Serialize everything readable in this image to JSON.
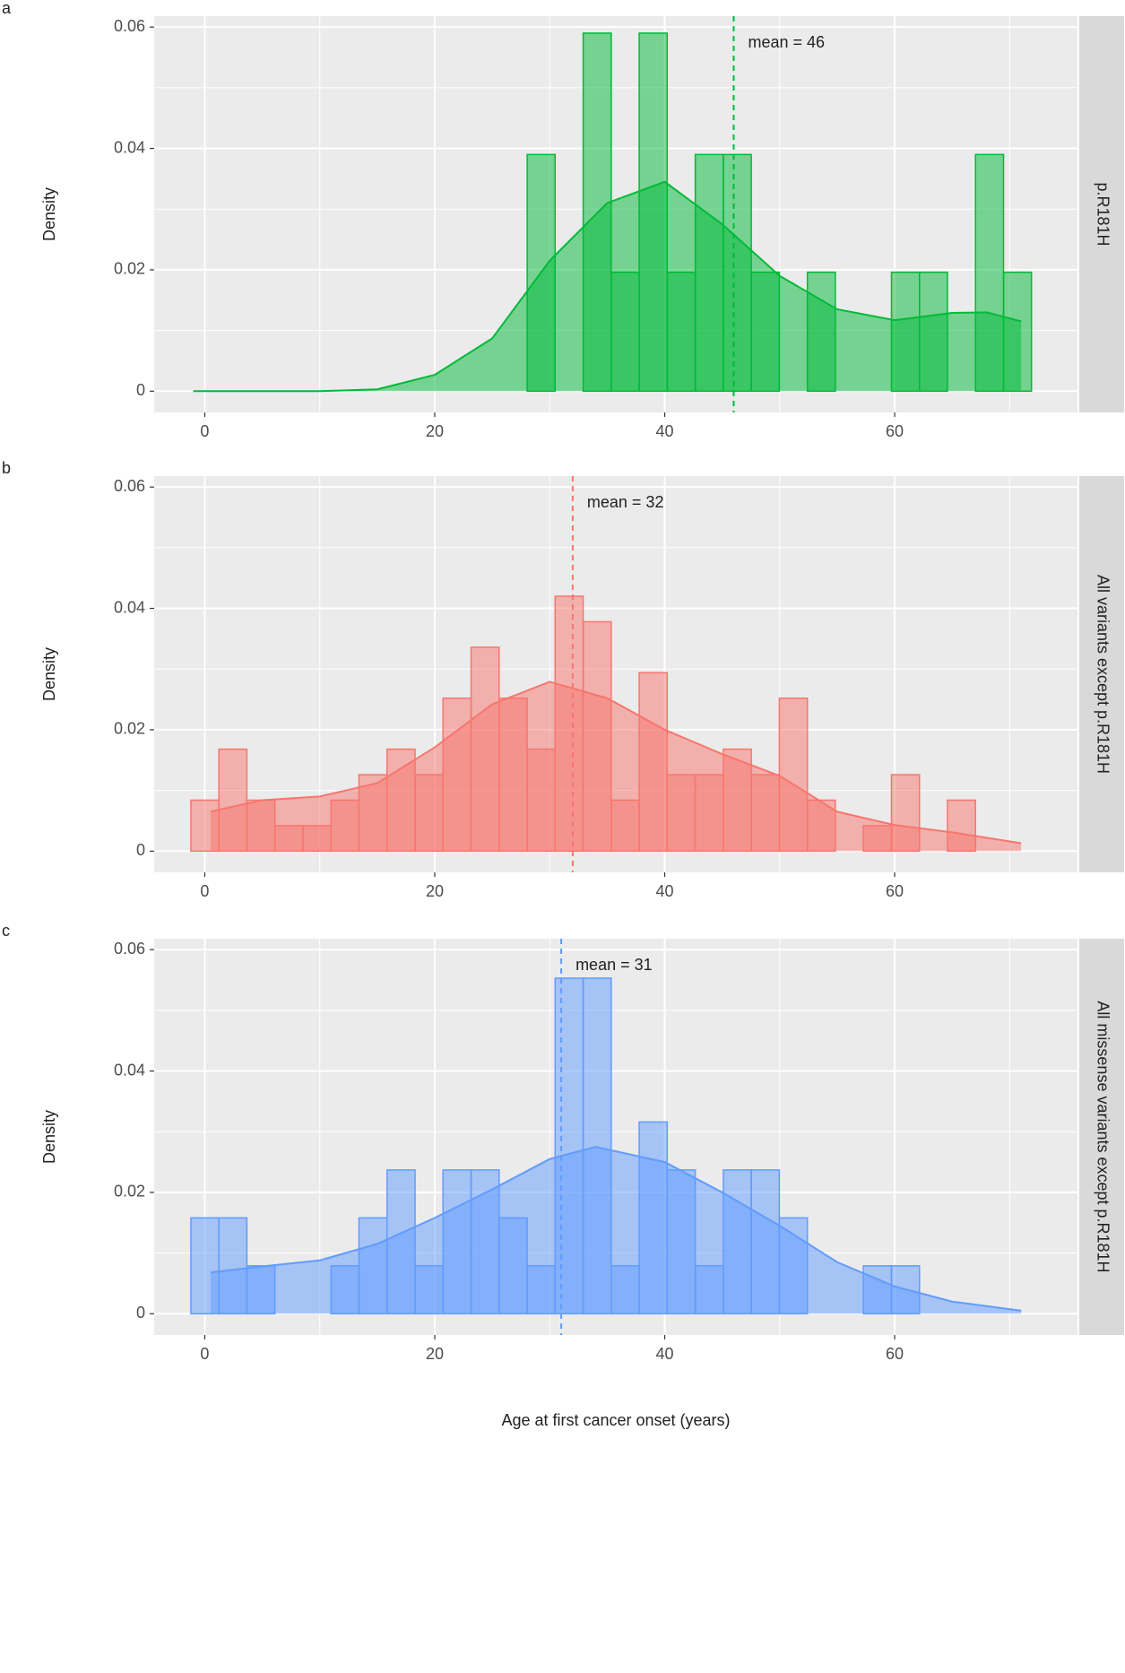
{
  "chart_data": [
    {
      "type": "histogram",
      "panel_label": "a",
      "strip": "p.R181H",
      "y_label": "Density",
      "color": "#00BA38",
      "bins": [
        -1.21,
        1.23,
        3.66,
        6.1,
        8.54,
        10.98,
        13.41,
        15.85,
        18.29,
        20.72,
        23.16,
        25.6,
        28.04,
        30.47,
        32.91,
        35.35,
        37.78,
        40.22,
        42.66,
        45.1,
        47.53,
        49.97,
        52.41,
        54.84,
        57.28,
        59.72,
        62.16,
        64.59,
        67.03,
        69.47,
        71.9
      ],
      "values": [
        0,
        0,
        0,
        0,
        0,
        0,
        0,
        0,
        0,
        0,
        0,
        0,
        0.039,
        0,
        0.059,
        0.0196,
        0.059,
        0.0196,
        0.039,
        0.039,
        0.0196,
        0,
        0.0196,
        0,
        0,
        0.0196,
        0.0196,
        0,
        0.039,
        0.0196
      ],
      "density": {
        "x": [
          -1,
          5,
          10,
          15,
          20,
          25,
          30,
          35,
          40,
          45,
          50,
          55,
          60,
          65,
          68,
          71
        ],
        "y": [
          0,
          0,
          0,
          0.0003,
          0.0027,
          0.0087,
          0.0215,
          0.031,
          0.0345,
          0.0275,
          0.019,
          0.0135,
          0.0117,
          0.0129,
          0.013,
          0.0115
        ]
      },
      "mean": {
        "text": "mean = 46",
        "x": 46
      },
      "xlim": [
        -4.4,
        75.9
      ],
      "ylim": [
        -0.0035,
        0.0618
      ],
      "xticks": [
        0,
        20,
        40,
        60
      ],
      "yticks": [
        0,
        0.02,
        0.04,
        0.06
      ]
    },
    {
      "type": "histogram",
      "panel_label": "b",
      "strip": "All variants except p.R181H",
      "y_label": "Density",
      "color": "#F8766D",
      "bins": [
        -1.21,
        1.23,
        3.66,
        6.1,
        8.54,
        10.98,
        13.41,
        15.85,
        18.29,
        20.72,
        23.16,
        25.6,
        28.04,
        30.47,
        32.91,
        35.35,
        37.78,
        40.22,
        42.66,
        45.1,
        47.53,
        49.97,
        52.41,
        54.84,
        57.28,
        59.72,
        62.16,
        64.59,
        67.03,
        69.47,
        71.9
      ],
      "values": [
        0.0084,
        0.0168,
        0.0084,
        0.0042,
        0.0042,
        0.0084,
        0.0126,
        0.0168,
        0.0126,
        0.0252,
        0.0336,
        0.0252,
        0.0168,
        0.042,
        0.0378,
        0.0084,
        0.0294,
        0.0126,
        0.0126,
        0.0168,
        0.0126,
        0.0252,
        0.0084,
        0,
        0.0042,
        0.0126,
        0,
        0.0084,
        0,
        0
      ],
      "density": {
        "x": [
          0.5,
          5,
          10,
          15,
          20,
          25,
          30,
          35,
          40,
          45,
          50,
          55,
          60,
          65,
          71
        ],
        "y": [
          0.0065,
          0.0084,
          0.009,
          0.0112,
          0.0171,
          0.0242,
          0.0279,
          0.0252,
          0.02,
          0.016,
          0.0124,
          0.0065,
          0.0043,
          0.0031,
          0.0013
        ]
      },
      "mean": {
        "text": "mean = 32",
        "x": 32
      },
      "xlim": [
        -4.4,
        75.9
      ],
      "ylim": [
        -0.0035,
        0.0618
      ],
      "xticks": [
        0,
        20,
        40,
        60
      ],
      "yticks": [
        0,
        0.02,
        0.04,
        0.06
      ]
    },
    {
      "type": "histogram",
      "panel_label": "c",
      "strip": "All missense variants except p.R181H",
      "y_label": "Density",
      "x_label": "Age at first cancer onset (years)",
      "color": "#619CFF",
      "bins": [
        -1.21,
        1.23,
        3.66,
        6.1,
        8.54,
        10.98,
        13.41,
        15.85,
        18.29,
        20.72,
        23.16,
        25.6,
        28.04,
        30.47,
        32.91,
        35.35,
        37.78,
        40.22,
        42.66,
        45.1,
        47.53,
        49.97,
        52.41,
        54.84,
        57.28,
        59.72,
        62.16,
        64.59,
        67.03,
        69.47,
        71.9
      ],
      "values": [
        0.0158,
        0.0158,
        0.0079,
        0,
        0,
        0.0079,
        0.0158,
        0.0237,
        0.0079,
        0.0237,
        0.0237,
        0.0158,
        0.0079,
        0.0553,
        0.0553,
        0.0079,
        0.0316,
        0.0237,
        0.0079,
        0.0237,
        0.0237,
        0.0158,
        0,
        0,
        0.0079,
        0.0079,
        0,
        0,
        0,
        0
      ],
      "density": {
        "x": [
          0.5,
          5,
          10,
          15,
          20,
          25,
          30,
          34,
          40,
          45,
          50,
          55,
          60,
          65,
          71
        ],
        "y": [
          0.0068,
          0.0078,
          0.0088,
          0.0115,
          0.0158,
          0.0205,
          0.0255,
          0.0275,
          0.025,
          0.02,
          0.0145,
          0.0085,
          0.0045,
          0.002,
          0.0005
        ]
      },
      "mean": {
        "text": "mean = 31",
        "x": 31
      },
      "xlim": [
        -4.4,
        75.9
      ],
      "ylim": [
        -0.0035,
        0.0618
      ],
      "xticks": [
        0,
        20,
        40,
        60
      ],
      "yticks": [
        0,
        0.02,
        0.04,
        0.06
      ]
    }
  ]
}
